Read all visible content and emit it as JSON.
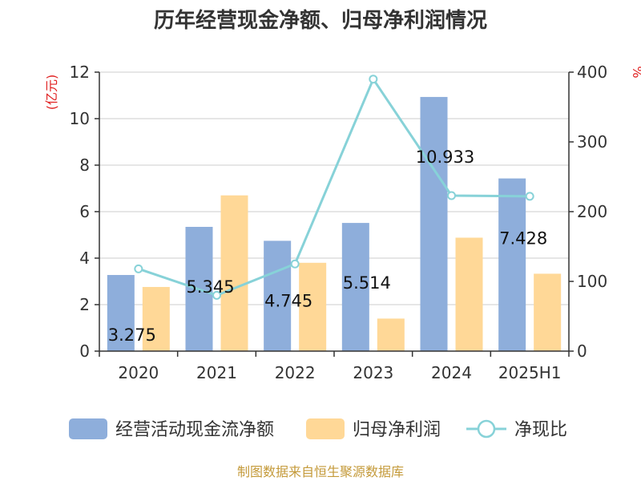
{
  "chart_data": {
    "type": "bar",
    "title": "历年经营现金净额、归母净利润情况",
    "categories": [
      "2020",
      "2021",
      "2022",
      "2023",
      "2024",
      "2025H1"
    ],
    "y_left": {
      "unit": "(亿元)",
      "ylim": [
        0,
        12
      ],
      "ticks": [
        "0",
        "2",
        "4",
        "6",
        "8",
        "10",
        "12"
      ]
    },
    "y_right": {
      "unit": "%",
      "ylim": [
        0,
        400
      ],
      "ticks": [
        "0",
        "100",
        "200",
        "300",
        "400"
      ]
    },
    "series": [
      {
        "name": "经营活动现金流净额",
        "type": "bar",
        "axis": "left",
        "color": "#8eaedb",
        "values": [
          3.275,
          5.345,
          4.745,
          5.514,
          10.933,
          7.428
        ],
        "labels": [
          "3.275",
          "5.345",
          "4.745",
          "5.514",
          "10.933",
          "7.428"
        ]
      },
      {
        "name": "归母净利润",
        "type": "bar",
        "axis": "left",
        "color": "#ffd897",
        "values": [
          2.76,
          6.7,
          3.8,
          1.4,
          4.88,
          3.33
        ]
      },
      {
        "name": "净现比",
        "type": "line",
        "axis": "right",
        "color": "#87d2d8",
        "values": [
          118,
          80,
          125,
          390,
          223,
          222
        ]
      }
    ],
    "grid": true,
    "legend": "bottom"
  },
  "footer": {
    "source": "制图数据来自恒生聚源数据库",
    "source_color": "#c49a3a"
  },
  "colors": {
    "unit_color": "#e02020",
    "axis_color": "#333333",
    "grid_color": "#cccccc"
  }
}
